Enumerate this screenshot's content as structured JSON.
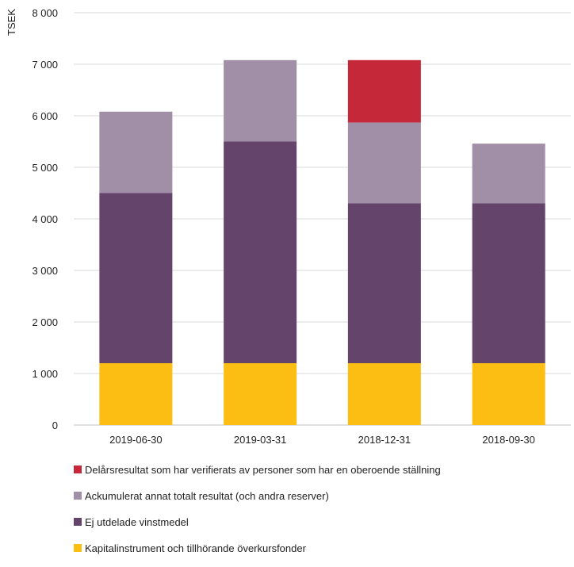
{
  "chart_data": {
    "type": "bar",
    "stacked": true,
    "ylabel": "TSEK",
    "ylim": [
      0,
      8000
    ],
    "yticks": [
      "0",
      "1 000",
      "2 000",
      "3 000",
      "4 000",
      "5 000",
      "6 000",
      "7 000",
      "8 000"
    ],
    "categories": [
      "2019-06-30",
      "2019-03-31",
      "2018-12-31",
      "2018-09-30"
    ],
    "series": [
      {
        "name": "Kapitalinstrument och tillhörande överkursfonder",
        "color": "#fcbe12",
        "values": [
          1200,
          1200,
          1200,
          1200
        ]
      },
      {
        "name": "Ej utdelade vinstmedel",
        "color": "#65446c",
        "values": [
          3300,
          4300,
          3100,
          3100
        ]
      },
      {
        "name": "Ackumulerat annat totalt resultat (och andra reserver)",
        "color": "#a18ea7",
        "values": [
          1580,
          1580,
          1570,
          1160
        ]
      },
      {
        "name": "Delårsresultat som har verifierats av personer som har en oberoende ställning",
        "color": "#c52838",
        "values": [
          0,
          0,
          1210,
          0
        ]
      }
    ],
    "grid": true,
    "legend_position": "bottom"
  }
}
